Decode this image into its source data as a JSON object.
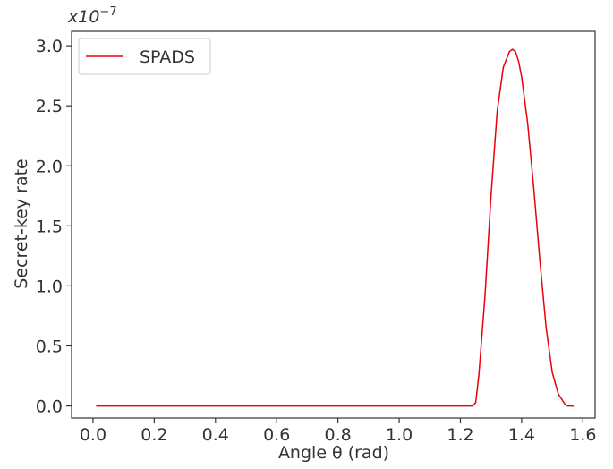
{
  "chart_data": {
    "type": "line",
    "xlabel": "Angle θ (rad)",
    "ylabel": "Secret-key rate",
    "y_multiplier_label": "x10",
    "y_multiplier_exponent": "−7",
    "xlim": [
      -0.07,
      1.64
    ],
    "ylim": [
      -0.1,
      3.12
    ],
    "x_ticks": [
      0.0,
      0.2,
      0.4,
      0.6,
      0.8,
      1.0,
      1.2,
      1.4,
      1.6
    ],
    "x_tick_labels": [
      "0.0",
      "0.2",
      "0.4",
      "0.6",
      "0.8",
      "1.0",
      "1.2",
      "1.4",
      "1.6"
    ],
    "y_ticks": [
      0.0,
      0.5,
      1.0,
      1.5,
      2.0,
      2.5,
      3.0
    ],
    "y_tick_labels": [
      "0.0",
      "0.5",
      "1.0",
      "1.5",
      "2.0",
      "2.5",
      "3.0"
    ],
    "grid": false,
    "legend_position": "top-left",
    "series": [
      {
        "name": "SPADS",
        "color": "#e8000b",
        "x": [
          0.01,
          0.3,
          0.6,
          0.9,
          1.1,
          1.24,
          1.25,
          1.26,
          1.28,
          1.3,
          1.32,
          1.34,
          1.36,
          1.37,
          1.38,
          1.39,
          1.4,
          1.42,
          1.44,
          1.46,
          1.48,
          1.5,
          1.52,
          1.54,
          1.55,
          1.57
        ],
        "y": [
          0.0,
          0.0,
          0.0,
          0.0,
          0.0,
          0.0,
          0.03,
          0.25,
          0.9,
          1.75,
          2.45,
          2.82,
          2.95,
          2.97,
          2.95,
          2.87,
          2.74,
          2.35,
          1.8,
          1.2,
          0.65,
          0.28,
          0.1,
          0.02,
          0.0,
          0.0
        ]
      }
    ]
  }
}
